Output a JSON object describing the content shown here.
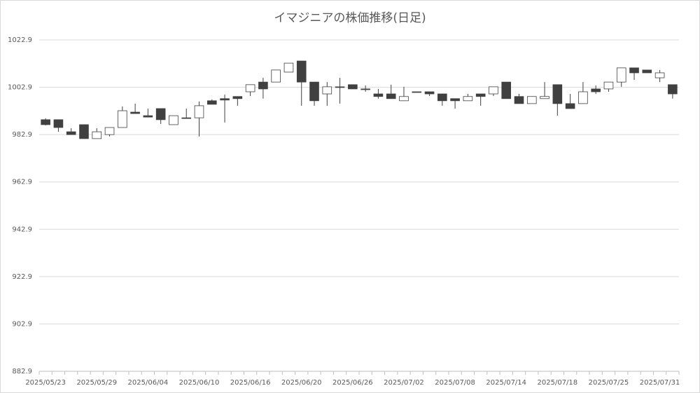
{
  "chart_data": {
    "type": "candlestick",
    "title": "イマジニアの株価推移(日足)",
    "categories": [
      "2025/05/23",
      null,
      null,
      null,
      "2025/05/29",
      null,
      null,
      null,
      "2025/06/04",
      null,
      null,
      null,
      "2025/06/10",
      null,
      null,
      null,
      "2025/06/16",
      null,
      null,
      null,
      "2025/06/20",
      null,
      null,
      null,
      "2025/06/26",
      null,
      null,
      null,
      "2025/07/02",
      null,
      null,
      null,
      "2025/07/08",
      null,
      null,
      null,
      "2025/07/14",
      null,
      null,
      null,
      "2025/07/18",
      null,
      null,
      null,
      "2025/07/25",
      null,
      null,
      null,
      "2025/07/31",
      null
    ],
    "open": [
      989.2,
      989.2,
      984.1,
      987.1,
      981.2,
      982.9,
      985.9,
      992.4,
      990.9,
      993.9,
      987.1,
      990.0,
      990.0,
      997.2,
      998.1,
      999.0,
      1001.0,
      1005.1,
      1005.1,
      1009.3,
      1014.0,
      1005.1,
      1000.1,
      1003.1,
      1004.0,
      1002.2,
      1000.1,
      1000.1,
      997.2,
      1001.0,
      1001.0,
      1000.1,
      998.1,
      997.2,
      1000.1,
      1000.1,
      1005.1,
      999.0,
      996.0,
      998.1,
      1004.0,
      996.0,
      996.0,
      1002.2,
      1002.2,
      1005.1,
      1011.1,
      1010.2,
      1006.9,
      1004.0
    ],
    "high": [
      989.8,
      989.2,
      985.6,
      987.1,
      985.6,
      985.9,
      994.8,
      996.0,
      993.9,
      993.9,
      990.9,
      993.9,
      996.9,
      997.8,
      999.8,
      999.0,
      1004.0,
      1006.9,
      1010.2,
      1013.1,
      1014.0,
      1005.1,
      1005.1,
      1006.9,
      1004.0,
      1003.7,
      1002.2,
      1004.0,
      1003.1,
      1001.0,
      1001.0,
      1000.1,
      998.1,
      1000.1,
      1000.1,
      1003.1,
      1005.1,
      1000.1,
      999.0,
      1005.1,
      1004.0,
      1000.1,
      1005.1,
      1003.7,
      1005.1,
      1011.1,
      1011.1,
      1010.2,
      1010.2,
      1004.0
    ],
    "low": [
      986.8,
      984.1,
      982.9,
      981.2,
      981.2,
      982.1,
      985.9,
      991.8,
      990.3,
      987.4,
      987.1,
      989.8,
      982.1,
      995.7,
      988.0,
      995.1,
      999.2,
      998.1,
      1005.1,
      1009.3,
      995.1,
      995.1,
      995.1,
      996.0,
      1002.2,
      1001.0,
      998.1,
      998.1,
      997.2,
      1000.7,
      999.2,
      995.1,
      993.9,
      997.2,
      995.1,
      999.2,
      998.1,
      996.0,
      996.0,
      998.1,
      990.9,
      993.9,
      996.0,
      1000.1,
      1001.0,
      1003.1,
      1006.0,
      1009.0,
      1005.1,
      998.1
    ],
    "close": [
      987.1,
      985.9,
      982.9,
      981.2,
      984.1,
      985.9,
      993.0,
      991.8,
      990.3,
      989.2,
      990.9,
      989.8,
      995.1,
      995.7,
      997.5,
      998.1,
      1004.0,
      1002.2,
      1010.2,
      1013.1,
      1005.1,
      997.2,
      1003.1,
      1002.8,
      1002.2,
      1001.9,
      999.0,
      998.1,
      999.0,
      1000.7,
      1000.1,
      997.2,
      997.2,
      999.0,
      999.0,
      1003.1,
      998.1,
      996.0,
      999.0,
      999.0,
      996.0,
      993.9,
      1001.0,
      1001.0,
      1005.1,
      1011.1,
      1009.0,
      1009.0,
      1009.0,
      1000.1
    ],
    "up_color": "#ffffff",
    "down_color": "#404040",
    "edge_color": "#404040",
    "ylim": [
      882.9,
      1022.9
    ],
    "yticks": [
      882.9,
      902.9,
      922.9,
      942.9,
      962.9,
      982.9,
      1002.9,
      1022.9
    ],
    "grid": true
  }
}
